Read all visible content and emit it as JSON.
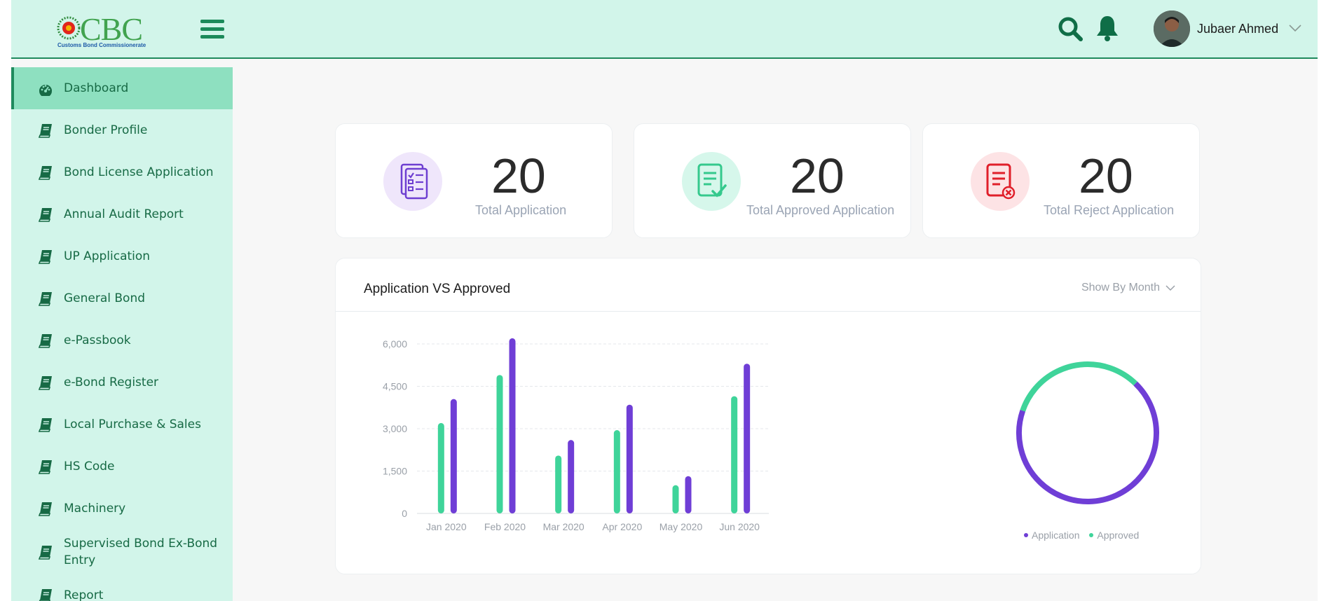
{
  "header": {
    "logo_text": "CBC",
    "logo_subtitle": "Customs Bond Commissionerate",
    "user_name": "Jubaer Ahmed"
  },
  "sidebar": {
    "items": [
      {
        "label": "Dashboard",
        "icon": "dashboard-gauge-icon",
        "active": true
      },
      {
        "label": "Bonder Profile",
        "icon": "book-icon"
      },
      {
        "label": "Bond License Application",
        "icon": "book-icon"
      },
      {
        "label": "Annual Audit Report",
        "icon": "book-icon"
      },
      {
        "label": "UP Application",
        "icon": "book-icon"
      },
      {
        "label": "General Bond",
        "icon": "book-icon"
      },
      {
        "label": "e-Passbook",
        "icon": "book-icon"
      },
      {
        "label": "e-Bond Register",
        "icon": "book-icon"
      },
      {
        "label": "Local Purchase & Sales",
        "icon": "book-icon"
      },
      {
        "label": "HS Code",
        "icon": "book-icon"
      },
      {
        "label": "Machinery",
        "icon": "book-icon"
      },
      {
        "label": "Supervised Bond Ex-Bond Entry",
        "label_line1": "Supervised Bond Ex-Bond",
        "label_line2": "Entry",
        "icon": "book-icon"
      },
      {
        "label": "Report",
        "icon": "book-icon"
      }
    ]
  },
  "stats": [
    {
      "value": "20",
      "label": "Total Application",
      "icon": "checklist-icon",
      "icon_bg": "#efe6fb",
      "icon_color": "#6e3fd1"
    },
    {
      "value": "20",
      "label": "Total Approved Application",
      "icon": "approved-document-icon",
      "icon_bg": "#d6f7eb",
      "icon_color": "#35c98d"
    },
    {
      "value": "20",
      "label": "Total Reject Application",
      "icon": "rejected-document-icon",
      "icon_bg": "#fde3e5",
      "icon_color": "#e01f2a"
    }
  ],
  "chart_panel": {
    "title": "Application VS Approved",
    "filter_label": "Show By Month"
  },
  "chart_data": [
    {
      "type": "bar",
      "categories": [
        "Jan 2020",
        "Feb 2020",
        "Mar 2020",
        "Apr 2020",
        "May 2020",
        "Jun 2020"
      ],
      "series": [
        {
          "name": "Approved",
          "color": "#3fd49a",
          "values": [
            3200,
            4900,
            2050,
            2950,
            1000,
            4150
          ]
        },
        {
          "name": "Application",
          "color": "#6f3ed6",
          "values": [
            4050,
            6200,
            2600,
            3850,
            1320,
            5300
          ]
        }
      ],
      "y_ticks": [
        "0",
        "1,500",
        "3,000",
        "4,500",
        "6,000"
      ],
      "ylim": [
        0,
        6000
      ],
      "grid": true
    },
    {
      "type": "pie",
      "style": "donut",
      "series": [
        {
          "name": "Application",
          "color": "#6f3ed6",
          "value": 0.68
        },
        {
          "name": "Approved",
          "color": "#3fd49a",
          "value": 0.32
        }
      ],
      "legend": [
        "Application",
        "Approved"
      ],
      "legend_position": "bottom"
    }
  ]
}
